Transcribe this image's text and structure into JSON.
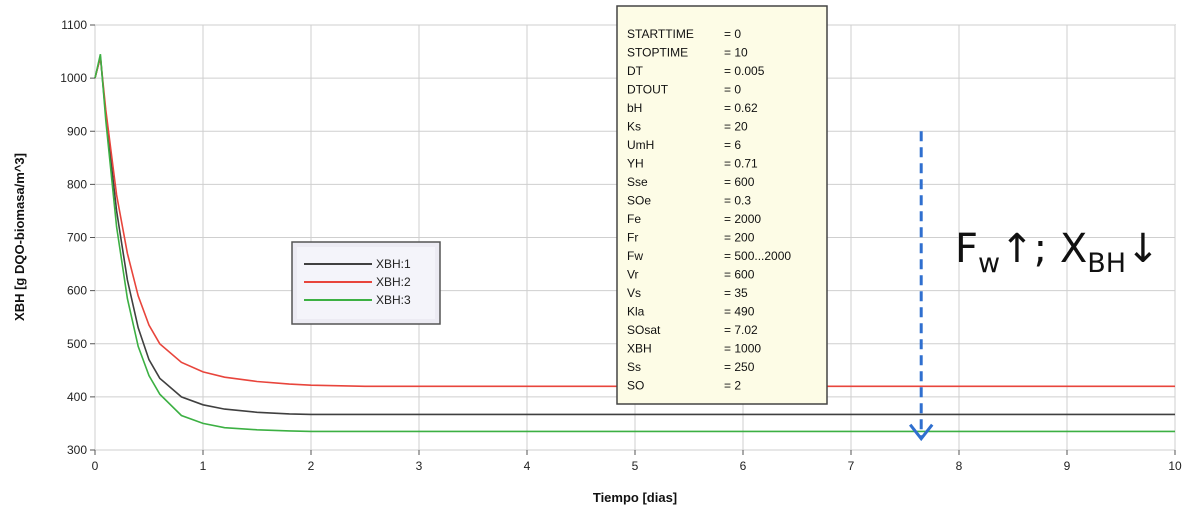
{
  "chart_data": {
    "type": "line",
    "xlabel": "Tiempo [dias]",
    "ylabel": "XBH [g DQO-biomasa/m^3]",
    "xlim": [
      0,
      10
    ],
    "ylim": [
      300,
      1100
    ],
    "xticks": [
      0,
      1,
      2,
      3,
      4,
      5,
      6,
      7,
      8,
      9,
      10
    ],
    "yticks": [
      300,
      400,
      500,
      600,
      700,
      800,
      900,
      1000,
      1100
    ],
    "grid": true,
    "legend_position": "center-left",
    "series": [
      {
        "name": "XBH:1",
        "color": "#404040",
        "x": [
          0,
          0.05,
          0.1,
          0.2,
          0.3,
          0.4,
          0.5,
          0.6,
          0.8,
          1.0,
          1.2,
          1.5,
          1.8,
          2.0,
          3,
          4,
          5,
          6,
          7,
          8,
          9,
          10
        ],
        "y": [
          1000,
          1040,
          930,
          750,
          620,
          530,
          470,
          435,
          400,
          385,
          377,
          371,
          368,
          367,
          367,
          367,
          367,
          367,
          367,
          367,
          367,
          367
        ]
      },
      {
        "name": "XBH:2",
        "color": "#e8453c",
        "x": [
          0,
          0.05,
          0.1,
          0.2,
          0.3,
          0.4,
          0.5,
          0.6,
          0.8,
          1.0,
          1.2,
          1.5,
          1.8,
          2.0,
          2.5,
          3,
          4,
          5,
          6,
          7,
          8,
          9,
          10
        ],
        "y": [
          1000,
          1040,
          940,
          780,
          670,
          590,
          535,
          500,
          465,
          447,
          437,
          429,
          424,
          422,
          420,
          420,
          420,
          420,
          420,
          420,
          420,
          420,
          420
        ]
      },
      {
        "name": "XBH:3",
        "color": "#3cb043",
        "x": [
          0,
          0.05,
          0.1,
          0.2,
          0.3,
          0.4,
          0.5,
          0.6,
          0.8,
          1.0,
          1.2,
          1.5,
          1.8,
          2.0,
          3,
          4,
          5,
          6,
          7,
          8,
          9,
          10
        ],
        "y": [
          1000,
          1045,
          920,
          720,
          585,
          495,
          440,
          405,
          365,
          350,
          342,
          338,
          336,
          335,
          335,
          335,
          335,
          335,
          335,
          335,
          335,
          335
        ]
      }
    ],
    "params": [
      {
        "key": "STARTTIME",
        "value": "= 0"
      },
      {
        "key": "STOPTIME",
        "value": "= 10"
      },
      {
        "key": "DT",
        "value": "= 0.005"
      },
      {
        "key": "DTOUT",
        "value": "= 0"
      },
      {
        "key": "bH",
        "value": "= 0.62"
      },
      {
        "key": "Ks",
        "value": "= 20"
      },
      {
        "key": "UmH",
        "value": "= 6"
      },
      {
        "key": "YH",
        "value": "= 0.71"
      },
      {
        "key": "Sse",
        "value": "= 600"
      },
      {
        "key": "SOe",
        "value": "= 0.3"
      },
      {
        "key": "Fe",
        "value": "= 2000"
      },
      {
        "key": "Fr",
        "value": "= 200"
      },
      {
        "key": "Fw",
        "value": "= 500...2000"
      },
      {
        "key": "Vr",
        "value": "= 600"
      },
      {
        "key": "Vs",
        "value": "= 35"
      },
      {
        "key": "Kla",
        "value": "= 490"
      },
      {
        "key": "SOsat",
        "value": "= 7.02"
      },
      {
        "key": "XBH",
        "value": "= 1000"
      },
      {
        "key": "Ss",
        "value": "= 250"
      },
      {
        "key": "SO",
        "value": "= 2"
      }
    ],
    "annotation": {
      "f_main": "F",
      "f_sub": "w",
      "f_arrow": "↑",
      "sep": "; ",
      "x_main": "X",
      "x_sub": "BH",
      "x_arrow": "↓",
      "arrow_color": "#2f6fcf",
      "arrow_x": 7.65,
      "arrow_y_top": 900,
      "arrow_y_bottom": 310
    }
  }
}
